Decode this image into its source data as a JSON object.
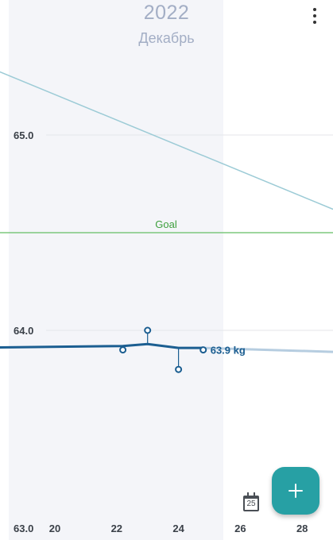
{
  "header": {
    "year": "2022",
    "month": "Декабрь"
  },
  "fab": {
    "icon": "plus-icon"
  },
  "calendar_button": {
    "icon": "calendar-icon",
    "label": "25"
  },
  "colors": {
    "weight_line": "#1b5e91",
    "trend_line": "#9ccbd6",
    "goal_line": "#7dc87d",
    "goal_label": "#3d9f3d",
    "projection": "#b6cde0",
    "accent": "#27a0a4"
  },
  "chart_data": {
    "type": "line",
    "x_unit": "day of December 2022",
    "x_ticks": [
      20,
      22,
      24,
      26,
      28
    ],
    "y_ticks": [
      "65.0",
      "64.0",
      "63.0"
    ],
    "ylim": [
      63.0,
      65.6
    ],
    "goal": {
      "label": "Goal",
      "value": 64.5
    },
    "series": [
      {
        "role": "trend",
        "x": [
          17.2,
          29.0
        ],
        "y": [
          65.39,
          64.62
        ]
      },
      {
        "role": "weight",
        "x": [
          17.0,
          22.2,
          23.0,
          24.0,
          24.8
        ],
        "y": [
          63.91,
          63.92,
          63.93,
          63.91,
          63.91
        ]
      },
      {
        "role": "projection",
        "x": [
          24.8,
          29.0
        ],
        "y": [
          63.91,
          63.89
        ]
      }
    ],
    "measurements": [
      {
        "x": 22.2,
        "y": 63.9
      },
      {
        "x": 23.0,
        "y": 64.0
      },
      {
        "x": 24.0,
        "y": 63.8
      },
      {
        "x": 24.8,
        "y": 63.9
      }
    ],
    "current_label": "63.9 kg"
  }
}
